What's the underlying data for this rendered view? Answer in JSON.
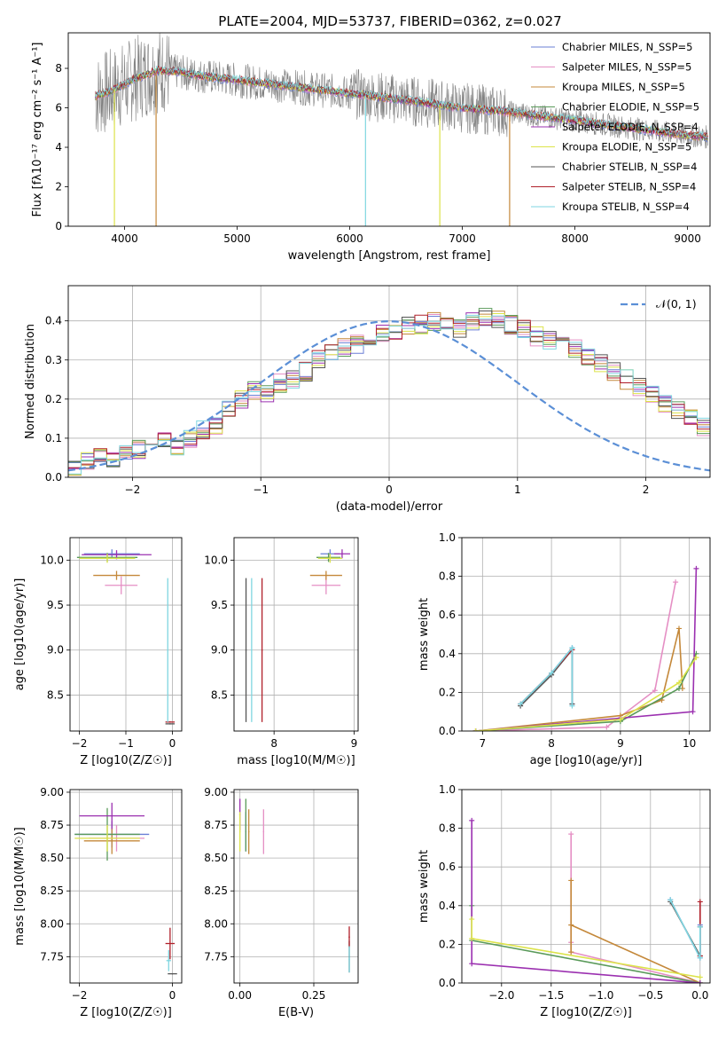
{
  "title": "PLATE=2004, MJD=53737, FIBERID=0362, z=0.027",
  "colors": {
    "chabrier_miles": "#6a7fd6",
    "salpeter_miles": "#e58fc4",
    "kroupa_miles": "#c4883a",
    "chabrier_elodie": "#5a9a5a",
    "salpeter_elodie": "#9b30b0",
    "kroupa_elodie": "#dce34a",
    "chabrier_stelib": "#555555",
    "salpeter_stelib": "#b0202a",
    "kroupa_stelib": "#7fd6e0",
    "spectrum": "#808080",
    "normal": "#5b8fd6"
  },
  "chart_data": [
    {
      "id": "spectrum",
      "type": "line",
      "xlabel": "wavelength [Angstrom, rest frame]",
      "ylabel": "Flux [fλ10⁻¹⁷ erg cm⁻² s⁻¹ A⁻¹]",
      "xlim": [
        3500,
        9200
      ],
      "ylim": [
        0,
        9.8
      ],
      "xticks": [
        4000,
        5000,
        6000,
        7000,
        8000,
        9000
      ],
      "yticks": [
        0,
        2,
        4,
        6,
        8
      ],
      "legend_position": "top-right",
      "series": [
        {
          "name": "Chabrier MILES, N_SSP=5"
        },
        {
          "name": "Salpeter MILES, N_SSP=5"
        },
        {
          "name": "Kroupa MILES, N_SSP=5"
        },
        {
          "name": "Chabrier ELODIE, N_SSP=5"
        },
        {
          "name": "Salpeter ELODIE, N_SSP=4"
        },
        {
          "name": "Kroupa ELODIE, N_SSP=5"
        },
        {
          "name": "Chabrier STELIB, N_SSP=4"
        },
        {
          "name": "Salpeter STELIB, N_SSP=4"
        },
        {
          "name": "Kroupa STELIB, N_SSP=4"
        }
      ],
      "model_curve": {
        "x": [
          3750,
          3900,
          4100,
          4300,
          4500,
          4700,
          5000,
          5300,
          5600,
          5900,
          6200,
          6600,
          7000,
          7400,
          7800,
          8200,
          8600,
          9000,
          9200
        ],
        "y": [
          6.6,
          6.9,
          7.5,
          7.9,
          7.8,
          7.6,
          7.4,
          7.2,
          7.0,
          6.8,
          6.6,
          6.3,
          6.0,
          5.8,
          5.5,
          5.2,
          4.9,
          4.6,
          4.5
        ]
      }
    },
    {
      "id": "residuals",
      "type": "line",
      "xlabel": "(data-model)/error",
      "ylabel": "Normed distribution",
      "xlim": [
        -2.5,
        2.5
      ],
      "ylim": [
        0,
        0.49
      ],
      "xticks": [
        -2,
        -1,
        0,
        1,
        2
      ],
      "yticks": [
        0.0,
        0.1,
        0.2,
        0.3,
        0.4
      ],
      "grid": true,
      "legend": "𝒩(0, 1)",
      "legend_position": "top-right",
      "bins_edges_step": 0.1,
      "histogram": [
        0.03,
        0.04,
        0.05,
        0.05,
        0.06,
        0.07,
        0.1,
        0.09,
        0.08,
        0.1,
        0.12,
        0.13,
        0.17,
        0.2,
        0.22,
        0.21,
        0.24,
        0.25,
        0.27,
        0.3,
        0.32,
        0.33,
        0.34,
        0.36,
        0.37,
        0.37,
        0.39,
        0.39,
        0.4,
        0.39,
        0.38,
        0.4,
        0.41,
        0.4,
        0.39,
        0.38,
        0.36,
        0.35,
        0.34,
        0.33,
        0.31,
        0.29,
        0.27,
        0.25,
        0.23,
        0.21,
        0.19,
        0.17,
        0.15,
        0.13
      ]
    },
    {
      "id": "age_vs_Z",
      "type": "scatter",
      "xlabel": "Z [log10(Z/Z☉)]",
      "ylabel": "age  [log10(age/yr)]",
      "xlim": [
        -2.2,
        0.2
      ],
      "ylim": [
        8.1,
        10.25
      ],
      "xticks": [
        -2,
        -1,
        0
      ],
      "yticks": [
        8.5,
        9.0,
        9.5,
        10.0
      ],
      "points": [
        {
          "x": -1.3,
          "y": 10.07,
          "xerr": 0.6,
          "yerr": 0.05,
          "series": 0
        },
        {
          "x": -1.1,
          "y": 9.72,
          "xerr": 0.35,
          "yerr": 0.1,
          "series": 1
        },
        {
          "x": -1.2,
          "y": 9.83,
          "xerr": 0.5,
          "yerr": 0.05,
          "series": 2
        },
        {
          "x": -1.4,
          "y": 10.03,
          "xerr": 0.65,
          "yerr": 0.05,
          "series": 3
        },
        {
          "x": -1.2,
          "y": 10.06,
          "xerr": 0.75,
          "yerr": 0.05,
          "series": 4
        },
        {
          "x": -1.4,
          "y": 10.02,
          "xerr": 0.6,
          "yerr": 0.05,
          "series": 5
        },
        {
          "x": -0.05,
          "y": 8.18,
          "xerr": 0.1,
          "yerr": 0.0,
          "series": 6
        },
        {
          "x": -0.05,
          "y": 8.2,
          "xerr": 0.1,
          "yerr": 0.0,
          "series": 7
        },
        {
          "x": -0.1,
          "y": 9.0,
          "xerr": 0.0,
          "yerr": 0.8,
          "series": 8
        }
      ]
    },
    {
      "id": "age_vs_mass",
      "type": "scatter",
      "xlabel": "mass [log10(M/M☉)]",
      "ylabel": "",
      "xlim": [
        7.5,
        9.05
      ],
      "ylim": [
        8.1,
        10.25
      ],
      "xticks": [
        8,
        9
      ],
      "yticks": [
        8.5,
        9.0,
        9.5,
        10.0
      ],
      "points": [
        {
          "x": 8.7,
          "y": 10.07,
          "xerr": 0.12,
          "yerr": 0.05,
          "series": 0
        },
        {
          "x": 8.65,
          "y": 9.72,
          "xerr": 0.18,
          "yerr": 0.1,
          "series": 1
        },
        {
          "x": 8.65,
          "y": 9.83,
          "xerr": 0.2,
          "yerr": 0.05,
          "series": 2
        },
        {
          "x": 8.68,
          "y": 10.03,
          "xerr": 0.15,
          "yerr": 0.05,
          "series": 3
        },
        {
          "x": 8.85,
          "y": 10.07,
          "xerr": 0.1,
          "yerr": 0.05,
          "series": 4
        },
        {
          "x": 8.7,
          "y": 10.02,
          "xerr": 0.15,
          "yerr": 0.05,
          "series": 5
        },
        {
          "x": 7.65,
          "y": 9.0,
          "xerr": 0.0,
          "yerr": 0.8,
          "series": 6
        },
        {
          "x": 7.85,
          "y": 9.0,
          "xerr": 0.0,
          "yerr": 0.8,
          "series": 7
        },
        {
          "x": 7.72,
          "y": 9.0,
          "xerr": 0.0,
          "yerr": 0.8,
          "series": 8
        }
      ]
    },
    {
      "id": "weight_vs_age",
      "type": "line",
      "xlabel": "age  [log10(age/yr)]",
      "ylabel": "mass weight",
      "xlim": [
        6.7,
        10.3
      ],
      "ylim": [
        0,
        1.0
      ],
      "xticks": [
        7,
        8,
        9,
        10
      ],
      "yticks": [
        0.0,
        0.2,
        0.4,
        0.6,
        0.8,
        1.0
      ],
      "grid": true,
      "series": [
        {
          "x": [
            7.55,
            8.0,
            8.3,
            8.3
          ],
          "y": [
            0.14,
            0.3,
            0.43,
            0.14
          ],
          "series": 0
        },
        {
          "x": [
            6.9,
            8.8,
            9.5,
            9.8
          ],
          "y": [
            0.0,
            0.02,
            0.21,
            0.77
          ],
          "series": 1
        },
        {
          "x": [
            6.9,
            9.0,
            9.6,
            9.85,
            9.9
          ],
          "y": [
            0.0,
            0.08,
            0.16,
            0.53,
            0.22
          ],
          "series": 2
        },
        {
          "x": [
            6.9,
            9.0,
            9.85,
            10.1
          ],
          "y": [
            0.0,
            0.05,
            0.22,
            0.4
          ],
          "series": 3
        },
        {
          "x": [
            6.9,
            10.05,
            10.1
          ],
          "y": [
            0.0,
            0.1,
            0.84
          ],
          "series": 4
        },
        {
          "x": [
            6.9,
            9.0,
            9.85,
            10.1
          ],
          "y": [
            0.0,
            0.06,
            0.25,
            0.38
          ],
          "series": 5
        },
        {
          "x": [
            7.55,
            8.0,
            8.3,
            8.3
          ],
          "y": [
            0.13,
            0.29,
            0.42,
            0.14
          ],
          "series": 6
        },
        {
          "x": [
            7.55,
            8.0,
            8.3
          ],
          "y": [
            0.14,
            0.3,
            0.42
          ],
          "series": 7
        },
        {
          "x": [
            7.55,
            8.0,
            8.3,
            8.3
          ],
          "y": [
            0.14,
            0.3,
            0.43,
            0.13
          ],
          "series": 8
        }
      ]
    },
    {
      "id": "mass_vs_Z",
      "type": "scatter",
      "xlabel": "Z [log10(Z/Z☉)]",
      "ylabel": "mass [log10(M/M☉)]",
      "xlim": [
        -2.2,
        0.2
      ],
      "ylim": [
        7.55,
        9.02
      ],
      "xticks": [
        -2,
        0
      ],
      "yticks": [
        7.75,
        8.0,
        8.25,
        8.5,
        8.75,
        9.0
      ],
      "points": [
        {
          "x": -1.3,
          "y": 8.68,
          "xerr": 0.8,
          "yerr": 0.1,
          "series": 0
        },
        {
          "x": -1.2,
          "y": 8.65,
          "xerr": 0.6,
          "yerr": 0.1,
          "series": 1
        },
        {
          "x": -1.3,
          "y": 8.63,
          "xerr": 0.6,
          "yerr": 0.1,
          "series": 2
        },
        {
          "x": -1.4,
          "y": 8.68,
          "xerr": 0.7,
          "yerr": 0.2,
          "series": 3
        },
        {
          "x": -1.3,
          "y": 8.82,
          "xerr": 0.7,
          "yerr": 0.1,
          "series": 4
        },
        {
          "x": -1.4,
          "y": 8.65,
          "xerr": 0.7,
          "yerr": 0.1,
          "series": 5
        },
        {
          "x": 0.0,
          "y": 7.62,
          "xerr": 0.1,
          "yerr": 0.0,
          "series": 6
        },
        {
          "x": -0.05,
          "y": 7.85,
          "xerr": 0.1,
          "yerr": 0.12,
          "series": 7
        },
        {
          "x": -0.08,
          "y": 7.72,
          "xerr": 0.05,
          "yerr": 0.08,
          "series": 8
        }
      ]
    },
    {
      "id": "mass_vs_ebv",
      "type": "scatter",
      "xlabel": "E(B-V)",
      "ylabel": "",
      "xlim": [
        -0.02,
        0.4
      ],
      "ylim": [
        7.55,
        9.02
      ],
      "xticks": [
        0.0,
        0.25
      ],
      "xtick_labels": [
        "0.00",
        "0.25"
      ],
      "yticks": [
        7.75,
        8.0,
        8.25,
        8.5,
        8.75,
        9.0
      ],
      "points": [
        {
          "x": 0.02,
          "y": 8.7,
          "yerr": 0.15,
          "series": 0
        },
        {
          "x": 0.08,
          "y": 8.7,
          "yerr": 0.17,
          "series": 1
        },
        {
          "x": 0.03,
          "y": 8.7,
          "yerr": 0.17,
          "series": 2
        },
        {
          "x": 0.02,
          "y": 8.75,
          "yerr": 0.2,
          "series": 3
        },
        {
          "x": 0.0,
          "y": 8.83,
          "yerr": 0.12,
          "series": 4
        },
        {
          "x": 0.0,
          "y": 8.7,
          "yerr": 0.15,
          "series": 5
        },
        {
          "x": 0.37,
          "y": 7.75,
          "yerr": 0.12,
          "series": 6
        },
        {
          "x": 0.37,
          "y": 7.9,
          "yerr": 0.08,
          "series": 7
        },
        {
          "x": 0.37,
          "y": 7.73,
          "yerr": 0.1,
          "series": 8
        }
      ]
    },
    {
      "id": "weight_vs_Z",
      "type": "line",
      "xlabel": "Z [log10(Z/Z☉)]",
      "ylabel": "mass weight",
      "xlim": [
        -2.4,
        0.1
      ],
      "ylim": [
        0,
        1.0
      ],
      "xticks": [
        -2.0,
        -1.5,
        -1.0,
        -0.5,
        0.0
      ],
      "yticks": [
        0.0,
        0.2,
        0.4,
        0.6,
        0.8,
        1.0
      ],
      "grid": true,
      "series": [
        {
          "x": [
            -0.3,
            0.0,
            0.0
          ],
          "y": [
            0.43,
            0.13,
            0.3
          ],
          "series": 0
        },
        {
          "x": [
            -1.3,
            -1.3,
            -1.3,
            0.0
          ],
          "y": [
            0.77,
            0.21,
            0.16,
            0.0
          ],
          "series": 1
        },
        {
          "x": [
            -1.3,
            -1.3,
            -1.3,
            0.0
          ],
          "y": [
            0.53,
            0.16,
            0.3,
            0.0
          ],
          "series": 2
        },
        {
          "x": [
            -2.3,
            -2.3,
            0.0
          ],
          "y": [
            0.4,
            0.22,
            0.0
          ],
          "series": 3
        },
        {
          "x": [
            -2.3,
            -2.3,
            0.0
          ],
          "y": [
            0.84,
            0.1,
            0.0
          ],
          "series": 4
        },
        {
          "x": [
            -2.3,
            -2.3,
            0.0
          ],
          "y": [
            0.33,
            0.23,
            0.03
          ],
          "series": 5
        },
        {
          "x": [
            -0.3,
            0.0,
            0.0
          ],
          "y": [
            0.42,
            0.14,
            0.29
          ],
          "series": 6
        },
        {
          "x": [
            0.0,
            0.0
          ],
          "y": [
            0.42,
            0.14
          ],
          "series": 7
        },
        {
          "x": [
            -0.3,
            0.0,
            0.0
          ],
          "y": [
            0.43,
            0.13,
            0.29
          ],
          "series": 8
        }
      ]
    }
  ]
}
